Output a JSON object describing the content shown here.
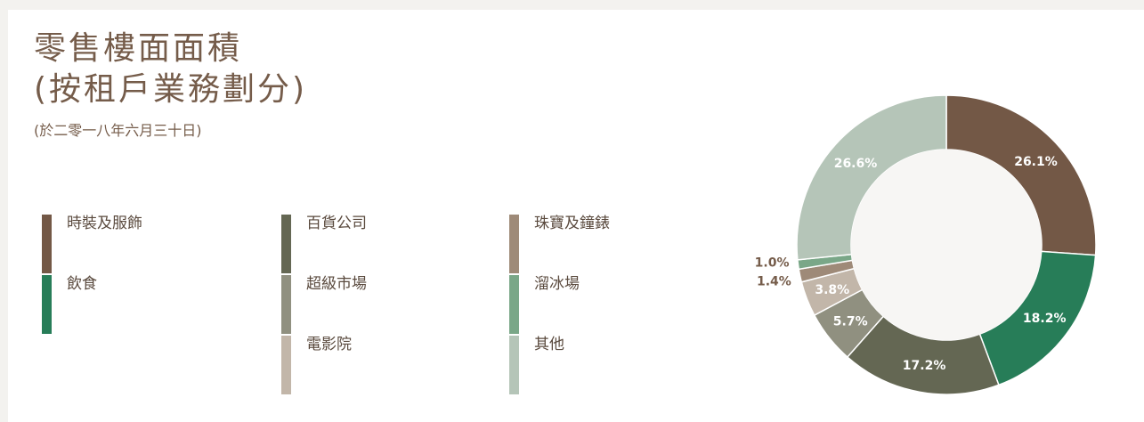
{
  "header": {
    "title_line1": "零售樓面面積",
    "title_line2": "(按租戶業務劃分)",
    "subtitle": "(於二零一八年六月三十日)"
  },
  "colors": {
    "background": "#ffffff",
    "title": "#755c4a",
    "inner_circle": "#f7f6f4"
  },
  "legend": [
    {
      "label": "時裝及服飾",
      "color": "#735846"
    },
    {
      "label": "飲食",
      "color": "#277d58"
    },
    {
      "label": "百貨公司",
      "color": "#646753"
    },
    {
      "label": "超級市場",
      "color": "#909080"
    },
    {
      "label": "電影院",
      "color": "#c2b6a9"
    },
    {
      "label": "珠寶及鐘錶",
      "color": "#9e8a78"
    },
    {
      "label": "溜冰場",
      "color": "#7aa788"
    },
    {
      "label": "其他",
      "color": "#b5c5b8"
    }
  ],
  "chart_data": {
    "type": "pie",
    "donut": true,
    "categories": [
      "時裝及服飾",
      "飲食",
      "百貨公司",
      "超級市場",
      "電影院",
      "珠寶及鐘錶",
      "溜冰場",
      "其他"
    ],
    "values": [
      26.1,
      18.2,
      17.2,
      5.7,
      3.8,
      1.4,
      1.0,
      26.6
    ],
    "data_labels": [
      "26.1%",
      "18.2%",
      "17.2%",
      "5.7%",
      "3.8%",
      "1.4%",
      "1.0%",
      "26.6%"
    ],
    "colors": [
      "#735846",
      "#277d58",
      "#646753",
      "#909080",
      "#c2b6a9",
      "#9e8a78",
      "#7aa788",
      "#b5c5b8"
    ],
    "start": "12 o'clock",
    "direction": "clockwise",
    "label_colors": [
      "#ffffff",
      "#ffffff",
      "#ffffff",
      "#ffffff",
      "#ffffff",
      "#755c4a",
      "#755c4a",
      "#ffffff"
    ]
  }
}
